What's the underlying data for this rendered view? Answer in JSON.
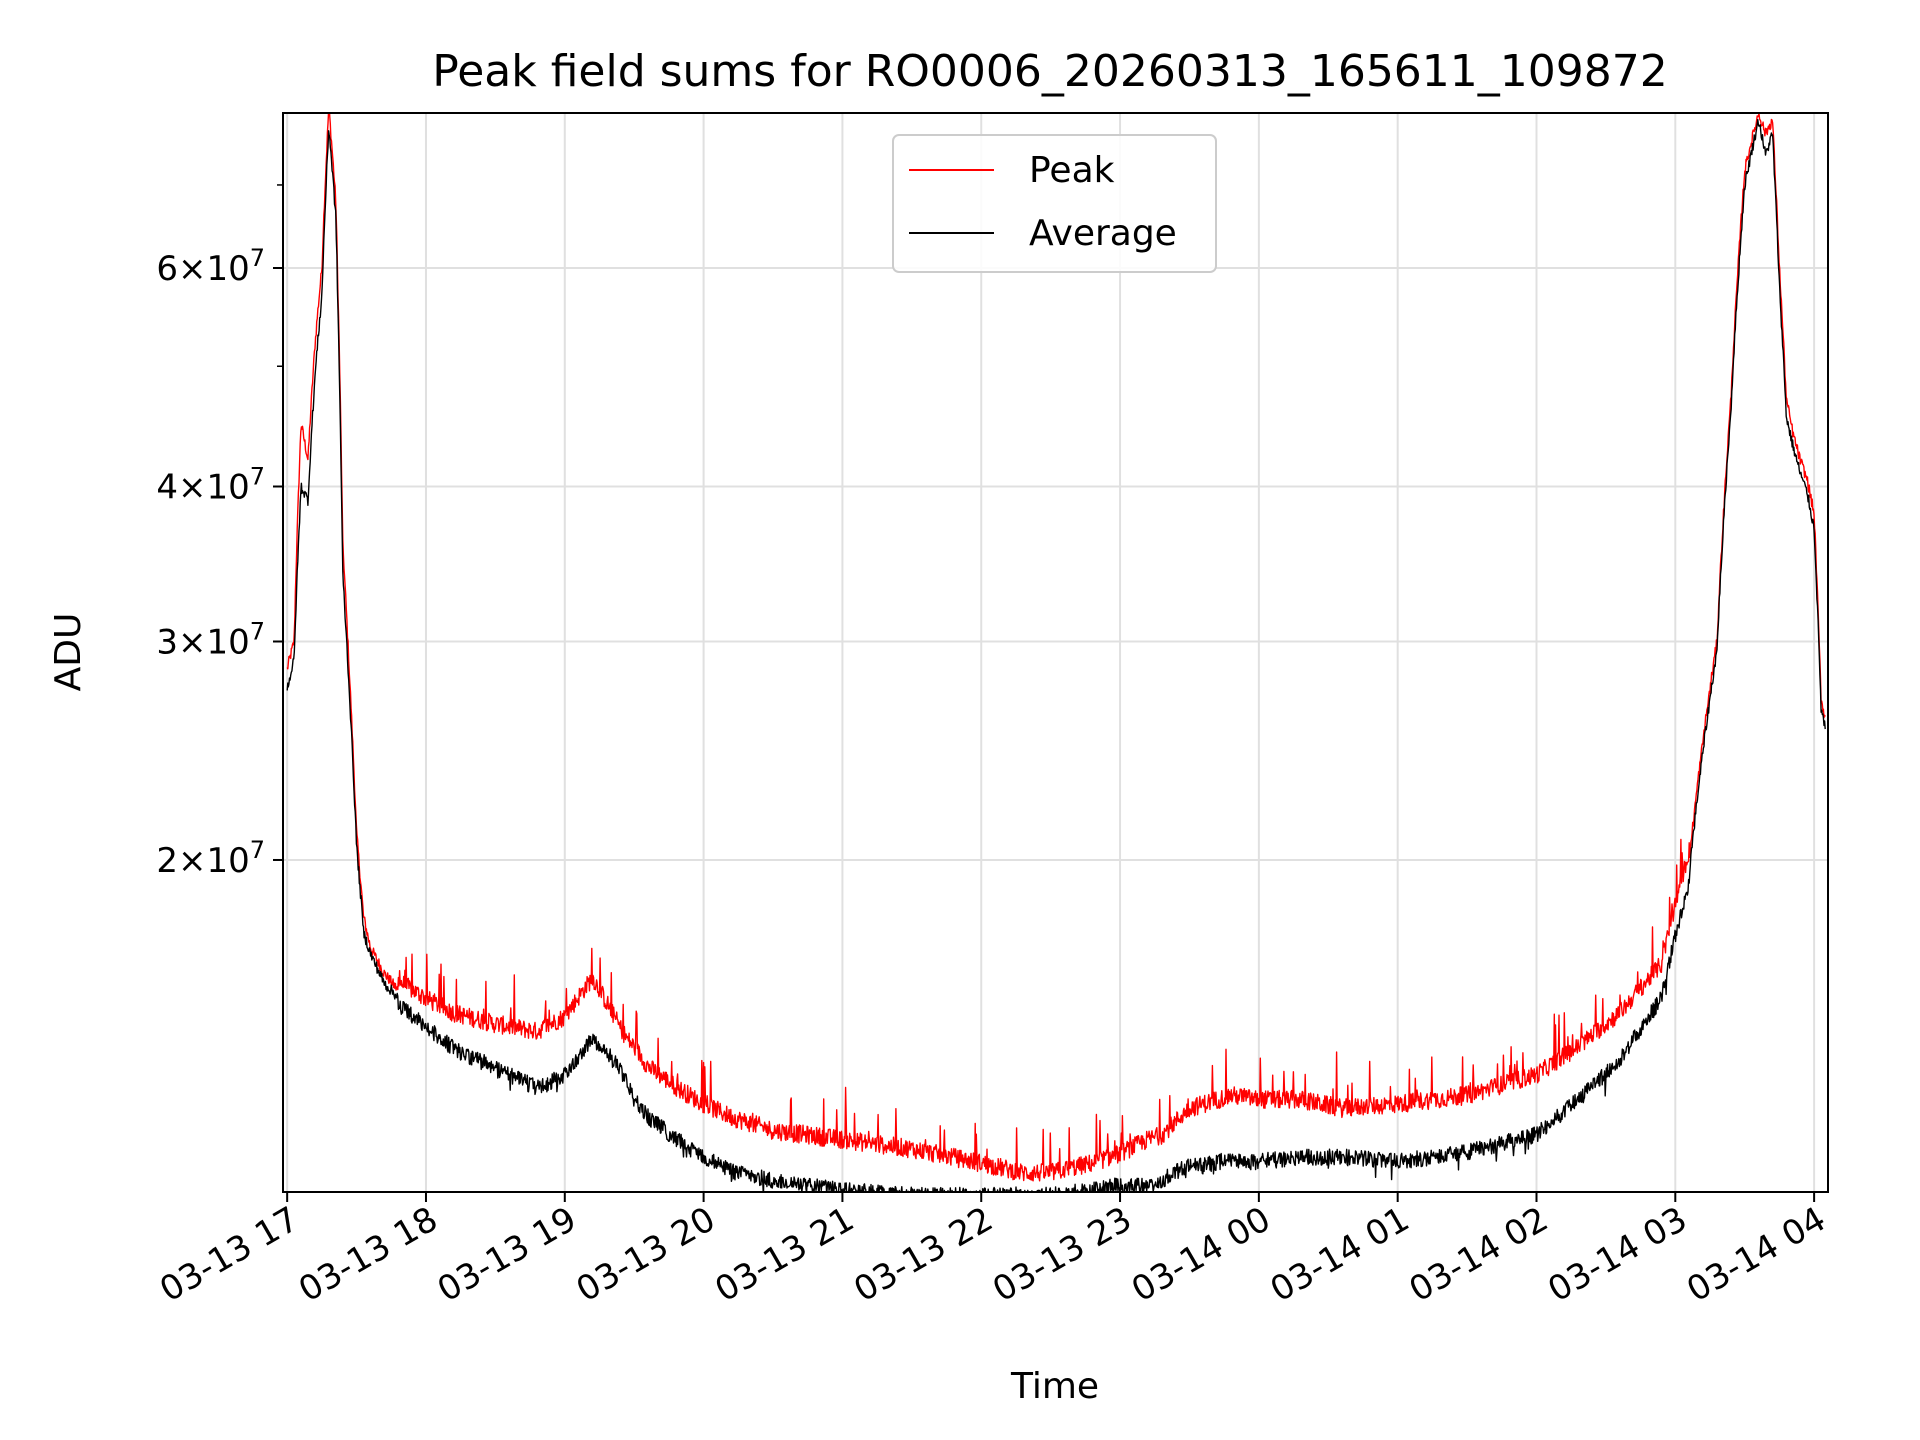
{
  "chart_data": {
    "type": "line",
    "title": "Peak field sums for RO0006_20260313_165611_109872",
    "xlabel": "Time",
    "ylabel": "ADU",
    "yscale": "log",
    "ylim": [
      10800000,
      80000000
    ],
    "xlim": [
      -0.03,
      11.1
    ],
    "grid": true,
    "legend_position": "top-center",
    "x_tick_labels": [
      "03-13 17",
      "03-13 18",
      "03-13 19",
      "03-13 20",
      "03-13 21",
      "03-13 22",
      "03-13 23",
      "03-14 00",
      "03-14 01",
      "03-14 02",
      "03-14 03",
      "03-14 04"
    ],
    "y_tick_labels": [
      {
        "value": 20000000,
        "mantissa": "2",
        "exponent": "7"
      },
      {
        "value": 30000000,
        "mantissa": "3",
        "exponent": "7"
      },
      {
        "value": 40000000,
        "mantissa": "4",
        "exponent": "7"
      },
      {
        "value": 60000000,
        "mantissa": "6",
        "exponent": "7"
      }
    ],
    "y_minor_ticks": [
      50000000,
      70000000
    ],
    "x_hours_from_17": [
      0,
      0.05,
      0.1,
      0.15,
      0.2,
      0.25,
      0.3,
      0.35,
      0.4,
      0.45,
      0.5,
      0.55,
      0.6,
      0.7,
      0.8,
      1.0,
      1.2,
      1.5,
      1.8,
      2.0,
      2.2,
      2.4,
      2.45,
      2.5,
      2.6,
      2.8,
      3.0,
      3.2,
      3.5,
      4.0,
      4.5,
      5.0,
      5.3,
      5.5,
      5.8,
      6.0,
      6.2,
      6.3,
      6.4,
      6.5,
      6.6,
      6.7,
      6.8,
      7.0,
      7.3,
      7.6,
      8.0,
      8.5,
      9.0,
      9.3,
      9.6,
      9.9,
      10.1,
      10.3,
      10.4,
      10.5,
      10.6,
      10.65,
      10.7,
      10.75,
      10.8,
      10.85,
      10.9,
      10.95,
      11.0,
      11.05,
      11.08
    ],
    "series": [
      {
        "name": "Peak",
        "color": "#ff0000",
        "values": [
          28500000,
          30000000,
          45000000,
          42000000,
          52000000,
          60000000,
          81000000,
          68000000,
          36000000,
          28000000,
          21000000,
          18000000,
          17000000,
          16200000,
          15700000,
          15200000,
          14800000,
          14500000,
          14300000,
          14700000,
          15800000,
          14400000,
          14100000,
          13900000,
          13400000,
          12900000,
          12500000,
          12200000,
          11900000,
          11700000,
          11500000,
          11200000,
          11000000,
          11000000,
          11200000,
          11400000,
          11700000,
          11800000,
          12100000,
          12400000,
          12500000,
          12600000,
          12700000,
          12600000,
          12600000,
          12400000,
          12500000,
          12700000,
          13200000,
          13900000,
          14800000,
          16200000,
          20000000,
          30000000,
          47000000,
          72000000,
          80000000,
          77000000,
          79000000,
          60000000,
          47000000,
          44000000,
          42000000,
          40500000,
          38000000,
          27000000,
          26000000
        ]
      },
      {
        "name": "Average",
        "color": "#000000",
        "values": [
          27500000,
          29000000,
          40000000,
          39000000,
          49000000,
          57000000,
          78000000,
          66000000,
          34000000,
          27000000,
          20500000,
          17500000,
          16800000,
          15900000,
          15500000,
          14900000,
          14300000,
          13800000,
          13300000,
          13600000,
          14600000,
          13800000,
          13400000,
          13000000,
          12600000,
          12100000,
          11700000,
          11400000,
          11200000,
          11000000,
          10900000,
          10900000,
          10900000,
          10900000,
          11000000,
          11100000,
          11100000,
          11200000,
          11400000,
          11500000,
          11500000,
          11600000,
          11600000,
          11600000,
          11700000,
          11700000,
          11600000,
          11800000,
          12200000,
          13000000,
          14000000,
          15700000,
          19500000,
          29500000,
          46000000,
          70000000,
          79000000,
          74000000,
          77000000,
          58000000,
          45500000,
          43000000,
          41000000,
          39500000,
          37000000,
          26500000,
          25500000
        ]
      }
    ]
  }
}
